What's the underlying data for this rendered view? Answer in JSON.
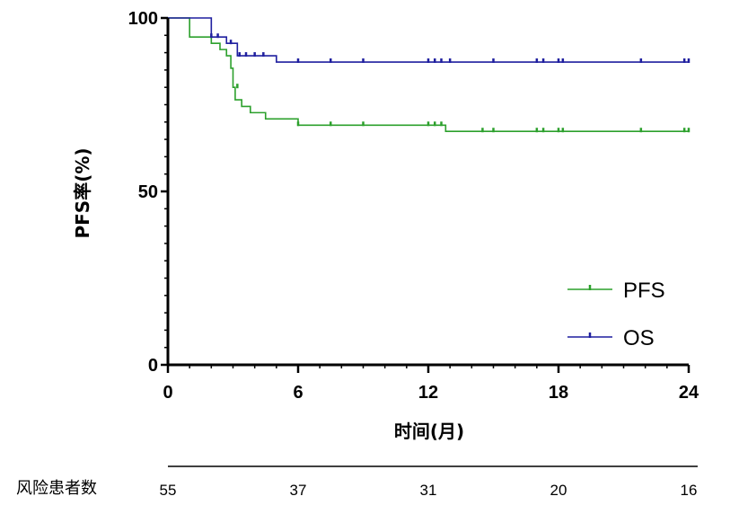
{
  "chart_data": {
    "type": "line",
    "title": "",
    "xlabel": "时间(月)",
    "ylabel": "PFS率(%)",
    "xlim": [
      0,
      24
    ],
    "ylim": [
      0,
      100
    ],
    "x_ticks": [
      0,
      6,
      12,
      18,
      24
    ],
    "y_ticks": [
      0,
      50,
      100
    ],
    "x_minor_step": 1,
    "y_minor_step": 5,
    "grid": false,
    "legend_position": "bottom-right",
    "series": [
      {
        "name": "PFS",
        "color": "#2ca02c",
        "steps": [
          [
            0,
            100
          ],
          [
            1,
            94.5
          ],
          [
            2,
            92.7
          ],
          [
            2.4,
            90.9
          ],
          [
            2.7,
            89.1
          ],
          [
            2.9,
            85.5
          ],
          [
            3,
            80
          ],
          [
            3.1,
            76.4
          ],
          [
            3.4,
            74.5
          ],
          [
            3.8,
            72.7
          ],
          [
            4.5,
            70.9
          ],
          [
            6,
            69.1
          ],
          [
            12.8,
            67.3
          ],
          [
            24,
            67.3
          ]
        ],
        "censored": [
          [
            3.2,
            80
          ],
          [
            6,
            69.1
          ],
          [
            7.5,
            69.1
          ],
          [
            9,
            69.1
          ],
          [
            12,
            69.1
          ],
          [
            12.3,
            69.1
          ],
          [
            12.6,
            69.1
          ],
          [
            14.5,
            67.3
          ],
          [
            15,
            67.3
          ],
          [
            17,
            67.3
          ],
          [
            17.3,
            67.3
          ],
          [
            18,
            67.3
          ],
          [
            18.2,
            67.3
          ],
          [
            21.8,
            67.3
          ],
          [
            23.8,
            67.3
          ],
          [
            24,
            67.3
          ]
        ]
      },
      {
        "name": "OS",
        "color": "#1f1f9f",
        "steps": [
          [
            0,
            100
          ],
          [
            2,
            94.5
          ],
          [
            2.7,
            92.7
          ],
          [
            3.2,
            89.1
          ],
          [
            5,
            87.3
          ],
          [
            24,
            87.3
          ]
        ],
        "censored": [
          [
            2,
            94.5
          ],
          [
            2.3,
            94.5
          ],
          [
            2.9,
            92.7
          ],
          [
            3.3,
            89.1
          ],
          [
            3.6,
            89.1
          ],
          [
            4,
            89.1
          ],
          [
            4.4,
            89.1
          ],
          [
            6,
            87.3
          ],
          [
            7.5,
            87.3
          ],
          [
            9,
            87.3
          ],
          [
            12,
            87.3
          ],
          [
            12.3,
            87.3
          ],
          [
            12.6,
            87.3
          ],
          [
            13,
            87.3
          ],
          [
            15,
            87.3
          ],
          [
            17,
            87.3
          ],
          [
            17.3,
            87.3
          ],
          [
            18,
            87.3
          ],
          [
            18.2,
            87.3
          ],
          [
            21.8,
            87.3
          ],
          [
            23.8,
            87.3
          ],
          [
            24,
            87.3
          ]
        ]
      }
    ]
  },
  "risk_table": {
    "label": "风险患者数",
    "counts": [
      {
        "x": 0,
        "value": "55"
      },
      {
        "x": 6,
        "value": "37"
      },
      {
        "x": 12,
        "value": "31"
      },
      {
        "x": 18,
        "value": "20"
      },
      {
        "x": 24,
        "value": "16"
      }
    ]
  }
}
